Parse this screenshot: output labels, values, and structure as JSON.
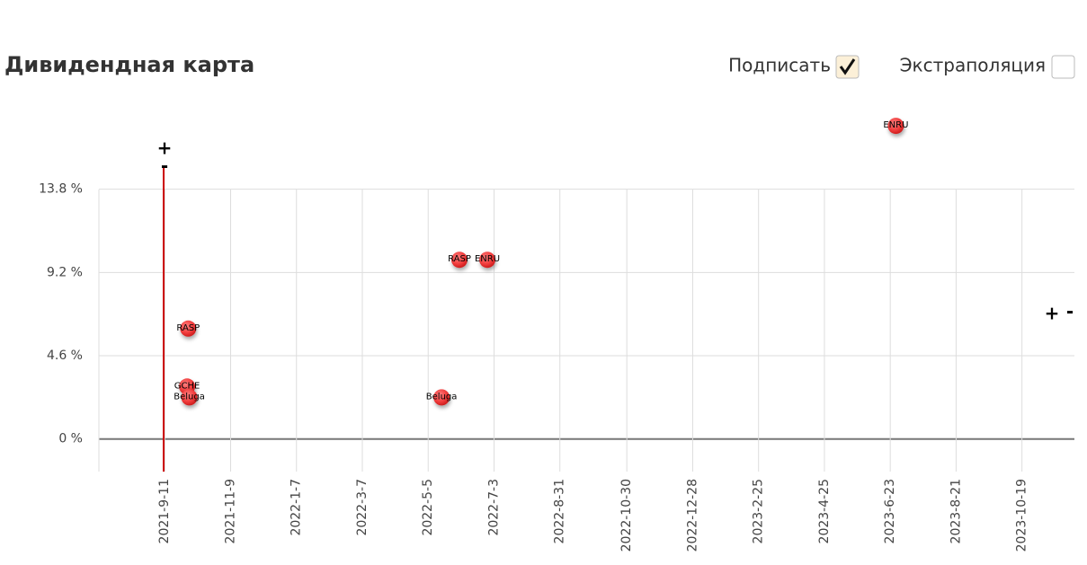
{
  "chart_data": {
    "type": "scatter",
    "title": "Дивидендная карта",
    "x": [
      "2021-10-2",
      "2021-10-1",
      "2021-10-3",
      "2022-5-17",
      "2022-6-2",
      "2022-6-27",
      "2023-6-28"
    ],
    "values": [
      6.1,
      2.9,
      2.3,
      2.3,
      9.9,
      9.9,
      17.3
    ],
    "labels": [
      "RASP",
      "GCHE",
      "Beluga",
      "Beluga",
      "RASP",
      "ENRU",
      "ENRU"
    ],
    "color": "#f03c3c",
    "xlim": [
      "2021-7-14",
      "2023-12-5"
    ],
    "xticks": [
      "2021-9-11",
      "2021-11-9",
      "2022-1-7",
      "2022-3-7",
      "2022-5-5",
      "2022-7-3",
      "2022-8-31",
      "2022-10-30",
      "2022-12-28",
      "2023-2-25",
      "2023-4-25",
      "2023-6-23",
      "2023-8-21",
      "2023-10-19"
    ],
    "ylim": [
      -1.8,
      17.9
    ],
    "yticks": [
      {
        "value": 0,
        "label": "0 %"
      },
      {
        "value": 4.6,
        "label": "4.6 %"
      },
      {
        "value": 9.2,
        "label": "9.2 %"
      },
      {
        "value": 13.8,
        "label": "13.8 %"
      }
    ],
    "marker_x": "2021-9-10",
    "marker_color": "#cc0000",
    "grid": true
  },
  "controls": [
    {
      "label": "Подписать",
      "checked": true
    },
    {
      "label": "Экстраполяция",
      "checked": false
    }
  ],
  "y_zoom": {
    "in": "+",
    "out": "-"
  },
  "x_zoom": {
    "in": "+",
    "out": "-"
  }
}
